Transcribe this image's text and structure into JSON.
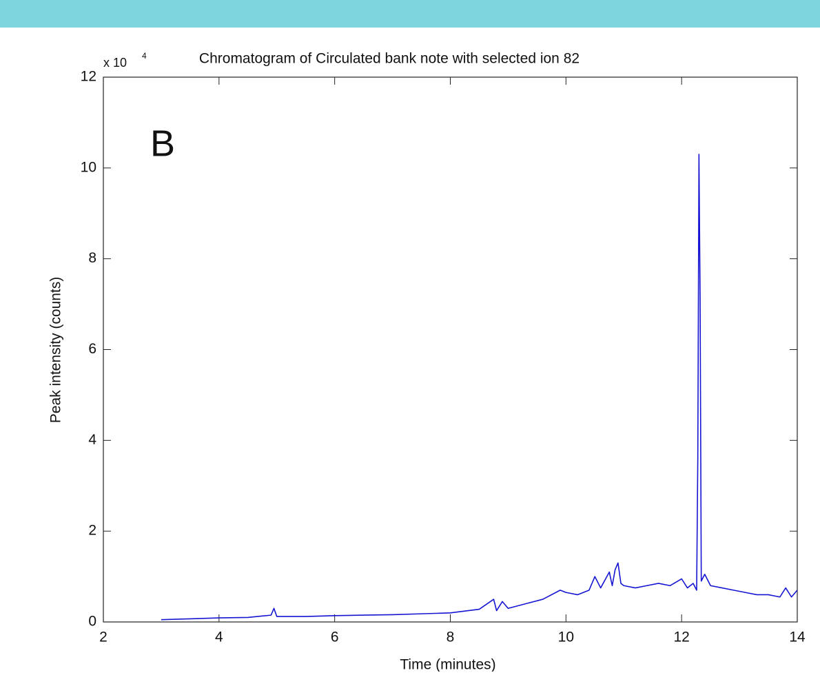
{
  "chart_data": {
    "type": "line",
    "title": "Chromatogram of Circulated bank note with selected ion 82",
    "xlabel": "Time (minutes)",
    "ylabel": "Peak intensity (counts)",
    "y_multiplier": {
      "base": "x 10",
      "exponent": "4"
    },
    "annotation": "B",
    "x": [
      3.0,
      3.5,
      4.0,
      4.5,
      4.9,
      4.95,
      5.0,
      5.5,
      6.0,
      6.5,
      7.0,
      7.5,
      8.0,
      8.5,
      8.75,
      8.8,
      8.9,
      9.0,
      9.3,
      9.6,
      9.9,
      10.0,
      10.2,
      10.4,
      10.5,
      10.6,
      10.75,
      10.8,
      10.85,
      10.9,
      10.95,
      11.0,
      11.2,
      11.4,
      11.6,
      11.8,
      12.0,
      12.1,
      12.2,
      12.26,
      12.28,
      12.3,
      12.32,
      12.34,
      12.4,
      12.5,
      12.7,
      12.9,
      13.1,
      13.3,
      13.5,
      13.7,
      13.8,
      13.9,
      14.0
    ],
    "series": [
      {
        "color": "#1414d2",
        "values": [
          0.05,
          0.07,
          0.09,
          0.1,
          0.15,
          0.3,
          0.12,
          0.12,
          0.14,
          0.15,
          0.16,
          0.18,
          0.2,
          0.28,
          0.5,
          0.25,
          0.45,
          0.3,
          0.4,
          0.5,
          0.7,
          0.65,
          0.6,
          0.7,
          1.0,
          0.75,
          1.1,
          0.8,
          1.15,
          1.3,
          0.85,
          0.8,
          0.75,
          0.8,
          0.85,
          0.8,
          0.95,
          0.75,
          0.85,
          0.7,
          3.6,
          10.3,
          7.1,
          0.9,
          1.05,
          0.8,
          0.75,
          0.7,
          0.65,
          0.6,
          0.6,
          0.55,
          0.75,
          0.55,
          0.7
        ]
      }
    ],
    "xlim": [
      2,
      14
    ],
    "xticks": [
      2,
      4,
      6,
      8,
      10,
      12,
      14
    ],
    "ylim": [
      0,
      12
    ],
    "yticks": [
      0,
      2,
      4,
      6,
      8,
      10,
      12
    ]
  }
}
